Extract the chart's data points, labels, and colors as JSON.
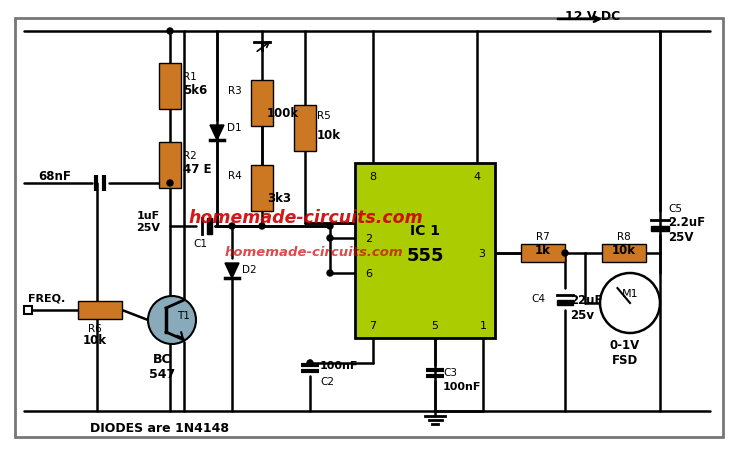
{
  "bg_color": "#ffffff",
  "resistor_color": "#CC7722",
  "ic_color": "#AACC00",
  "wire_color": "#000000",
  "transistor_fill": "#88AABB",
  "watermark_color": "#CC0000",
  "watermark1": "homemade-circuits.com",
  "watermark2": "homemade-circuits.com",
  "R1": "5k6",
  "R2": "47 E",
  "R3": "100k",
  "R4": "3k3",
  "R5": "10k",
  "R6": "10k",
  "R7": "1k",
  "R8": "10k",
  "C1_label": "1uF\n25V",
  "C2": "100nF",
  "C3": "100nF",
  "C4": "22uF\n25v",
  "C5": "2.2uF\n25V",
  "cap68": "68nF",
  "T1_label": "BC\n547",
  "IC_label1": "IC 1",
  "IC_label2": "555",
  "M1_label": "0-1V\nFSD",
  "freq_label": "FREQ.",
  "vcc_label": "12 V DC",
  "diodes_note": "DIODES are 1N4148"
}
